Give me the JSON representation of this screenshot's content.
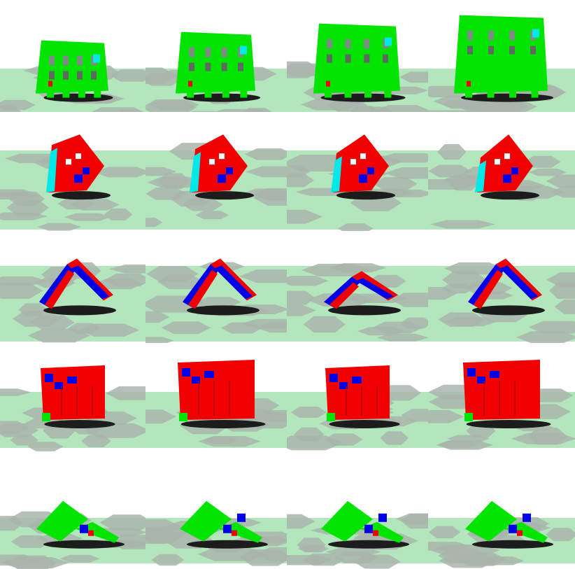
{
  "colors": {
    "background": "#ffffff",
    "floor_light": "#b3e6bd",
    "floor_dark": "#a9b5ac",
    "shadow": "#1c1c1c",
    "voxel_green": "#00e400",
    "voxel_red": "#f00000",
    "voxel_blue": "#0000e8",
    "voxel_cyan": "#00e8e8"
  },
  "grid": {
    "rows": 5,
    "columns": 4
  },
  "rows": [
    {
      "robot": "wide-walker",
      "body_color": "voxel_green",
      "accent_colors": [
        "voxel_cyan",
        "voxel_red"
      ],
      "frames": 4
    },
    {
      "robot": "tilted-cube",
      "body_color": "voxel_red",
      "accent_colors": [
        "voxel_cyan",
        "voxel_blue"
      ],
      "frames": 4
    },
    {
      "robot": "arch-bender",
      "body_color": "voxel_red",
      "accent_colors": [
        "voxel_blue"
      ],
      "frames": 4
    },
    {
      "robot": "box-walker",
      "body_color": "voxel_red",
      "accent_colors": [
        "voxel_blue",
        "voxel_green"
      ],
      "frames": 4
    },
    {
      "robot": "crawler",
      "body_color": "voxel_green",
      "accent_colors": [
        "voxel_blue",
        "voxel_red"
      ],
      "frames": 4
    }
  ]
}
